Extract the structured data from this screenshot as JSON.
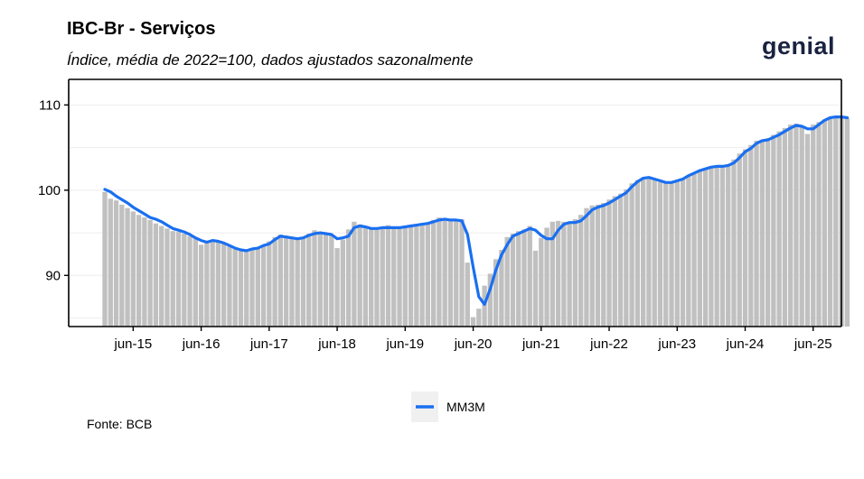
{
  "header": {
    "title": "IBC-Br - Serviços",
    "subtitle": "Índice, média de 2022=100, dados ajustados sazonalmente",
    "logo_text": "genial"
  },
  "footer": {
    "source": "Fonte: BCB"
  },
  "colors": {
    "bar": "#c0c0c0",
    "line": "#1a6ff0",
    "axis": "#000000",
    "grid": "#eeeeee",
    "logo": "#1a2340"
  },
  "chart_data": {
    "type": "bar",
    "title": "IBC-Br - Serviços",
    "xlabel": "",
    "ylabel": "",
    "ylim": [
      84,
      113
    ],
    "yticks": [
      90,
      100,
      110
    ],
    "xtick_labels": [
      "jun-15",
      "jun-16",
      "jun-17",
      "jun-18",
      "jun-19",
      "jun-20",
      "jun-21",
      "jun-22",
      "jun-23",
      "jun-24",
      "jun-25"
    ],
    "start_month": "2015-01",
    "end_month": "2025-08",
    "grid": true,
    "legend_position": "bottom",
    "series": [
      {
        "kind": "bar",
        "values": [
          99.8,
          99.0,
          98.8,
          98.3,
          97.9,
          97.5,
          97.1,
          96.8,
          96.5,
          96.1,
          95.8,
          95.5,
          95.2,
          95.1,
          94.9,
          94.6,
          94.3,
          93.6,
          93.9,
          94.1,
          94.0,
          93.8,
          93.4,
          93.1,
          92.9,
          92.9,
          93.1,
          93.3,
          93.6,
          94.0,
          94.5,
          94.8,
          94.7,
          94.5,
          94.3,
          94.5,
          94.9,
          95.3,
          95.1,
          95.0,
          94.8,
          93.2,
          94.2,
          95.4,
          96.3,
          96.0,
          95.7,
          95.5,
          95.6,
          95.7,
          95.9,
          95.6,
          95.5,
          95.7,
          95.9,
          96.0,
          96.1,
          96.2,
          96.5,
          96.8,
          96.6,
          96.5,
          96.4,
          96.6,
          91.5,
          85.1,
          86.1,
          88.8,
          90.2,
          91.9,
          93.0,
          94.5,
          94.9,
          95.2,
          95.4,
          95.8,
          92.9,
          94.4,
          95.6,
          96.3,
          96.4,
          96.3,
          96.2,
          96.6,
          97.1,
          97.9,
          98.2,
          98.3,
          98.5,
          98.9,
          99.3,
          99.6,
          100.1,
          100.8,
          101.2,
          101.5,
          101.5,
          101.2,
          101.0,
          100.8,
          100.9,
          101.1,
          101.4,
          101.7,
          102.0,
          102.3,
          102.6,
          102.8,
          102.8,
          102.7,
          103.0,
          103.6,
          104.3,
          104.8,
          105.3,
          105.8,
          105.9,
          106.1,
          106.5,
          106.9,
          107.3,
          107.7,
          107.8,
          107.4,
          106.6,
          107.7,
          108.0,
          108.3,
          108.6,
          108.5,
          108.6,
          108.5
        ]
      },
      {
        "kind": "line",
        "name": "MM3M",
        "values": [
          100.1,
          99.8,
          99.3,
          98.9,
          98.5,
          98.0,
          97.6,
          97.2,
          96.8,
          96.6,
          96.3,
          95.9,
          95.5,
          95.3,
          95.1,
          94.8,
          94.4,
          94.1,
          93.9,
          94.1,
          94.0,
          93.8,
          93.5,
          93.2,
          93.0,
          92.9,
          93.1,
          93.2,
          93.5,
          93.7,
          94.2,
          94.6,
          94.5,
          94.4,
          94.3,
          94.4,
          94.7,
          94.9,
          95.0,
          94.9,
          94.8,
          94.3,
          94.4,
          94.6,
          95.6,
          95.8,
          95.7,
          95.5,
          95.5,
          95.6,
          95.6,
          95.6,
          95.6,
          95.7,
          95.8,
          95.9,
          96.0,
          96.1,
          96.3,
          96.5,
          96.6,
          96.5,
          96.5,
          96.4,
          94.8,
          91.0,
          87.5,
          86.6,
          88.4,
          90.6,
          92.4,
          93.6,
          94.6,
          94.9,
          95.2,
          95.5,
          95.3,
          94.7,
          94.3,
          94.3,
          95.3,
          96.0,
          96.2,
          96.2,
          96.4,
          97.0,
          97.7,
          98.0,
          98.2,
          98.5,
          98.9,
          99.3,
          99.7,
          100.4,
          101.0,
          101.4,
          101.5,
          101.3,
          101.1,
          100.9,
          100.9,
          101.1,
          101.3,
          101.7,
          102.0,
          102.3,
          102.5,
          102.7,
          102.8,
          102.8,
          102.9,
          103.2,
          103.8,
          104.5,
          104.9,
          105.5,
          105.8,
          105.9,
          106.2,
          106.5,
          106.9,
          107.3,
          107.6,
          107.5,
          107.2,
          107.2,
          107.7,
          108.2,
          108.5,
          108.6,
          108.6,
          108.5
        ]
      }
    ]
  }
}
